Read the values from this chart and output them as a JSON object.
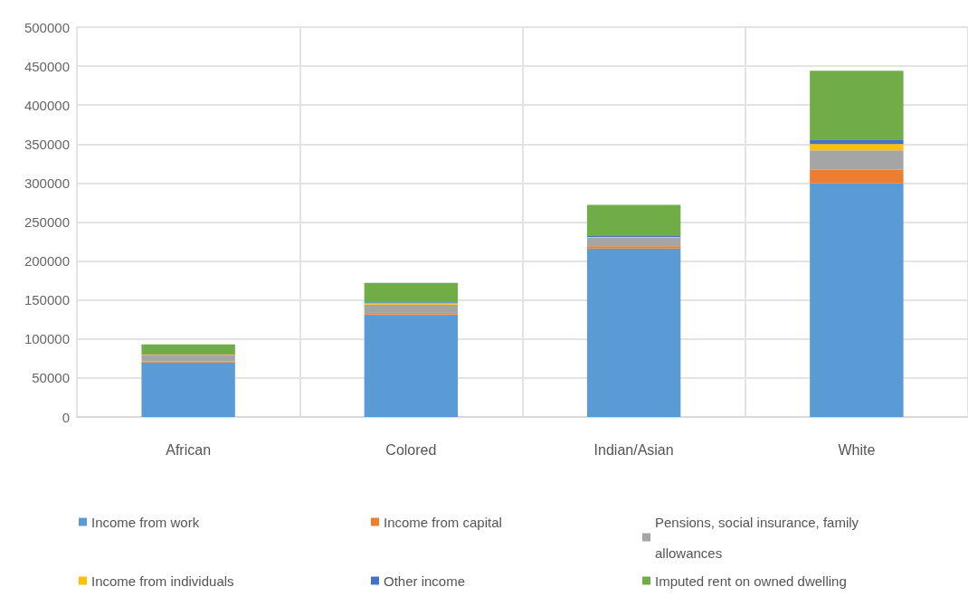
{
  "chart_data": {
    "type": "bar",
    "stacked": true,
    "categories": [
      "African",
      "Colored",
      "Indian/Asian",
      "White"
    ],
    "series": [
      {
        "name": "Income from work",
        "color": "#5b9bd5",
        "values": [
          70000,
          130000,
          216000,
          300000
        ]
      },
      {
        "name": "Income from capital",
        "color": "#ed7d31",
        "values": [
          1000,
          2000,
          3000,
          17000
        ]
      },
      {
        "name": "Pensions, social insurance, family allowances",
        "color": "#a5a5a5",
        "values": [
          8000,
          12000,
          11000,
          25000
        ]
      },
      {
        "name": "Income from individuals",
        "color": "#ffc000",
        "values": [
          1000,
          2000,
          1000,
          8000
        ]
      },
      {
        "name": "Other income",
        "color": "#4472c4",
        "values": [
          1000,
          1000,
          1000,
          6000
        ]
      },
      {
        "name": "Imputed rent on owned dwelling",
        "color": "#70ad47",
        "values": [
          12000,
          25000,
          40000,
          88000
        ]
      }
    ],
    "ylim": [
      0,
      500000
    ],
    "yticks": [
      0,
      50000,
      100000,
      150000,
      200000,
      250000,
      300000,
      350000,
      400000,
      450000,
      500000
    ],
    "grid": true,
    "legend": "bottom"
  }
}
